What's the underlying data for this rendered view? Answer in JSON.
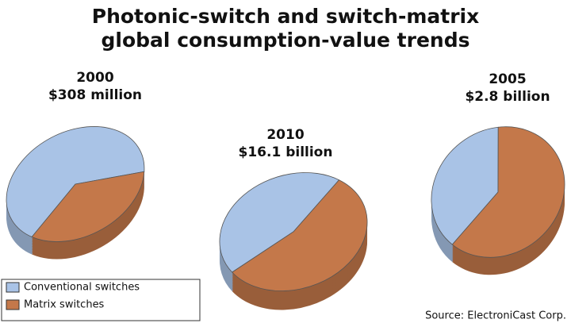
{
  "title_lines": [
    "Photonic-switch and switch-matrix",
    "global consumption-value trends"
  ],
  "source": "Source: ElectroniCast Corp.",
  "legend": {
    "categories": [
      "Conventional switches",
      "Matrix switches"
    ],
    "colors": [
      "#a9c3e6",
      "#c4784a"
    ]
  },
  "chart_data": [
    {
      "type": "pie",
      "title": "2000",
      "subtitle": "$308 million",
      "values": [
        65,
        35
      ]
    },
    {
      "type": "pie",
      "title": "2010",
      "subtitle": "$16.1 billion",
      "values": [
        45,
        55
      ]
    },
    {
      "type": "pie",
      "title": "2005",
      "subtitle": "$2.8 billion",
      "values": [
        38,
        62
      ]
    }
  ]
}
